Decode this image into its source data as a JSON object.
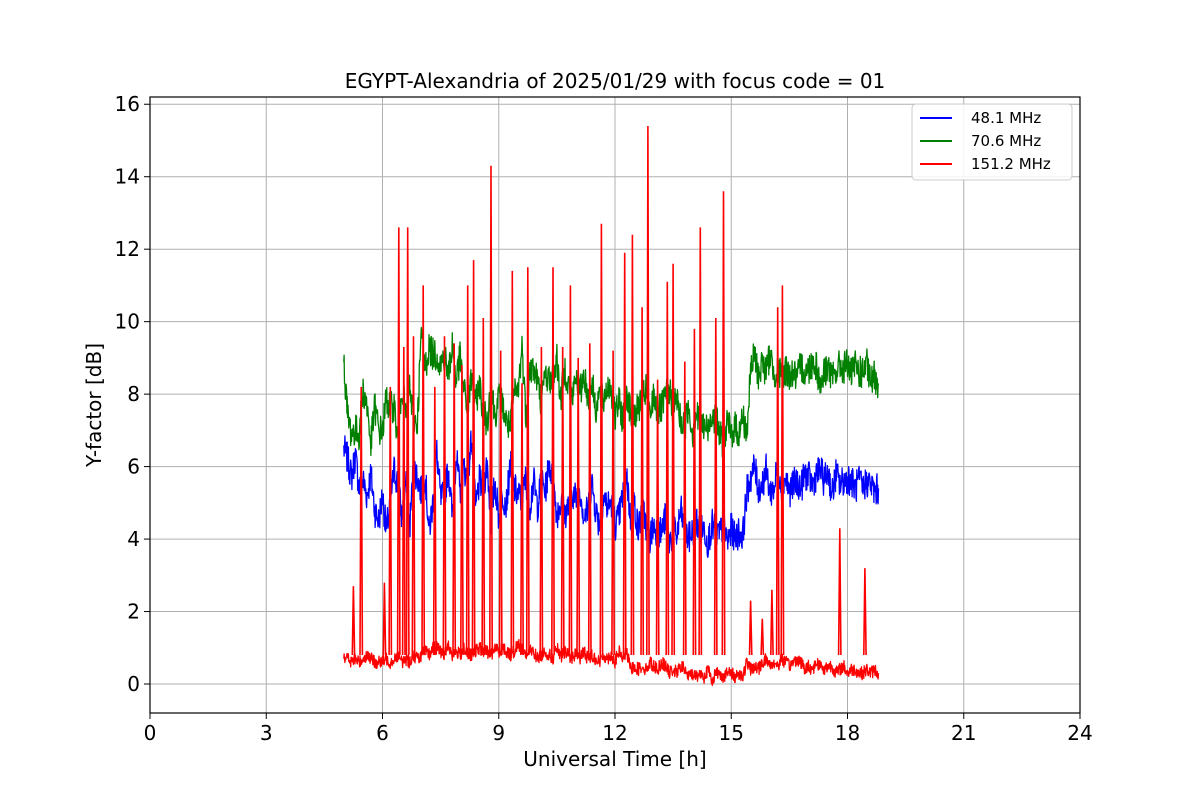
{
  "chart_data": {
    "type": "line",
    "title": "EGYPT-Alexandria of 2025/01/29 with focus code = 01",
    "xlabel": "Universal Time [h]",
    "ylabel": "Y-factor [dB]",
    "xlim": [
      0,
      24
    ],
    "ylim": [
      -0.8,
      16.2
    ],
    "xticks": [
      0,
      3,
      6,
      9,
      12,
      15,
      18,
      21,
      24
    ],
    "yticks": [
      0,
      2,
      4,
      6,
      8,
      10,
      12,
      14,
      16
    ],
    "grid": true,
    "legend_position": "top-right",
    "series": [
      {
        "name": "48.1 MHz",
        "color": "#0000ff",
        "x": [
          5.0,
          5.1,
          5.2,
          5.3,
          5.4,
          5.5,
          5.6,
          5.7,
          5.8,
          5.9,
          6.0,
          6.1,
          6.2,
          6.3,
          6.4,
          6.5,
          6.6,
          6.7,
          6.8,
          6.9,
          7.0,
          7.1,
          7.2,
          7.3,
          7.4,
          7.5,
          7.6,
          7.7,
          7.8,
          7.9,
          8.0,
          8.1,
          8.2,
          8.3,
          8.4,
          8.5,
          8.6,
          8.7,
          8.8,
          8.9,
          9.0,
          9.1,
          9.2,
          9.3,
          9.4,
          9.5,
          9.6,
          9.7,
          9.8,
          9.9,
          10.0,
          10.1,
          10.2,
          10.3,
          10.4,
          10.5,
          10.6,
          10.7,
          10.8,
          10.9,
          11.0,
          11.1,
          11.2,
          11.3,
          11.4,
          11.5,
          11.6,
          11.7,
          11.8,
          11.9,
          12.0,
          12.1,
          12.2,
          12.3,
          12.4,
          12.5,
          12.6,
          12.7,
          12.8,
          12.9,
          13.0,
          13.1,
          13.2,
          13.3,
          13.4,
          13.5,
          13.6,
          13.7,
          13.8,
          13.9,
          14.0,
          14.1,
          14.2,
          14.3,
          14.4,
          14.5,
          14.6,
          14.7,
          14.8,
          14.9,
          15.0,
          15.1,
          15.2,
          15.3,
          15.4,
          15.5,
          15.6,
          15.7,
          15.8,
          15.9,
          16.0,
          16.1,
          16.2,
          16.3,
          16.4,
          16.5,
          16.6,
          16.7,
          16.8,
          16.9,
          17.0,
          17.1,
          17.2,
          17.3,
          17.4,
          17.5,
          17.6,
          17.7,
          17.8,
          17.9,
          18.0,
          18.1,
          18.2,
          18.3,
          18.4,
          18.5,
          18.6,
          18.7,
          18.8
        ],
        "y": [
          6.5,
          6.2,
          5.7,
          6.3,
          5.4,
          5.6,
          5.2,
          5.8,
          4.8,
          4.5,
          5.2,
          4.2,
          5.0,
          5.9,
          5.5,
          4.6,
          5.6,
          4.3,
          6.0,
          5.7,
          5.3,
          5.8,
          4.2,
          5.0,
          6.4,
          5.1,
          5.2,
          6.0,
          4.6,
          6.3,
          5.3,
          6.0,
          5.6,
          6.9,
          4.8,
          5.6,
          5.4,
          6.1,
          4.5,
          5.6,
          4.6,
          5.2,
          5.0,
          6.1,
          5.4,
          5.2,
          5.1,
          5.7,
          4.9,
          5.6,
          4.9,
          5.6,
          5.3,
          6.1,
          5.6,
          4.7,
          5.0,
          4.7,
          4.9,
          5.3,
          5.1,
          5.4,
          4.6,
          4.8,
          5.6,
          4.8,
          4.4,
          5.2,
          4.9,
          5.0,
          4.4,
          4.6,
          5.2,
          5.8,
          4.5,
          5.0,
          4.2,
          4.9,
          4.4,
          4.0,
          4.4,
          4.2,
          4.2,
          4.6,
          3.9,
          4.2,
          4.1,
          4.8,
          4.2,
          4.0,
          4.2,
          4.5,
          4.2,
          4.3,
          3.9,
          4.4,
          4.2,
          4.1,
          4.4,
          3.9,
          4.3,
          4.0,
          4.2,
          4.1,
          5.3,
          5.7,
          6.0,
          5.4,
          5.5,
          5.9,
          5.3,
          5.4,
          6.0,
          5.5,
          5.7,
          5.3,
          5.5,
          5.6,
          5.4,
          5.8,
          5.7,
          5.5,
          5.8,
          5.9,
          5.6,
          5.9,
          5.2,
          5.8,
          5.5,
          5.6,
          5.7,
          5.6,
          5.4,
          5.6,
          5.4,
          5.6,
          5.5,
          5.3,
          5.4
        ]
      },
      {
        "name": "70.6 MHz",
        "color": "#008000",
        "x": [
          5.0,
          5.1,
          5.2,
          5.3,
          5.4,
          5.5,
          5.6,
          5.7,
          5.8,
          5.9,
          6.0,
          6.1,
          6.2,
          6.3,
          6.4,
          6.5,
          6.6,
          6.7,
          6.8,
          6.9,
          7.0,
          7.1,
          7.2,
          7.3,
          7.4,
          7.5,
          7.6,
          7.7,
          7.8,
          7.9,
          8.0,
          8.1,
          8.2,
          8.3,
          8.4,
          8.5,
          8.6,
          8.7,
          8.8,
          8.9,
          9.0,
          9.1,
          9.2,
          9.3,
          9.4,
          9.5,
          9.6,
          9.7,
          9.8,
          9.9,
          10.0,
          10.1,
          10.2,
          10.3,
          10.4,
          10.5,
          10.6,
          10.7,
          10.8,
          10.9,
          11.0,
          11.1,
          11.2,
          11.3,
          11.4,
          11.5,
          11.6,
          11.7,
          11.8,
          11.9,
          12.0,
          12.1,
          12.2,
          12.3,
          12.4,
          12.5,
          12.6,
          12.7,
          12.8,
          12.9,
          13.0,
          13.1,
          13.2,
          13.3,
          13.4,
          13.5,
          13.6,
          13.7,
          13.8,
          13.9,
          14.0,
          14.1,
          14.2,
          14.3,
          14.4,
          14.5,
          14.6,
          14.7,
          14.8,
          14.9,
          15.0,
          15.1,
          15.2,
          15.3,
          15.4,
          15.5,
          15.6,
          15.7,
          15.8,
          15.9,
          16.0,
          16.1,
          16.2,
          16.3,
          16.4,
          16.5,
          16.6,
          16.7,
          16.8,
          16.9,
          17.0,
          17.1,
          17.2,
          17.3,
          17.4,
          17.5,
          17.6,
          17.7,
          17.8,
          17.9,
          18.0,
          18.1,
          18.2,
          18.3,
          18.4,
          18.5,
          18.6,
          18.7,
          18.8
        ],
        "y": [
          8.9,
          7.4,
          6.9,
          7.0,
          6.9,
          8.1,
          7.7,
          6.6,
          7.7,
          7.0,
          7.0,
          7.9,
          7.6,
          7.7,
          6.6,
          8.3,
          7.4,
          8.2,
          7.3,
          7.2,
          9.7,
          8.7,
          9.3,
          9.1,
          9.1,
          8.8,
          9.1,
          8.5,
          9.4,
          8.4,
          9.0,
          8.1,
          7.6,
          8.5,
          7.7,
          8.3,
          7.5,
          7.2,
          8.3,
          7.4,
          7.9,
          7.7,
          7.2,
          7.1,
          8.0,
          8.1,
          9.3,
          7.4,
          8.7,
          8.7,
          8.4,
          7.7,
          8.6,
          8.4,
          8.4,
          9.0,
          7.8,
          8.7,
          8.3,
          7.9,
          8.5,
          8.0,
          8.6,
          7.9,
          8.4,
          7.6,
          8.0,
          7.8,
          8.2,
          8.2,
          7.3,
          7.8,
          7.3,
          8.1,
          7.5,
          7.4,
          7.6,
          7.9,
          8.1,
          7.3,
          8.0,
          7.5,
          7.6,
          7.9,
          8.1,
          7.6,
          7.9,
          7.2,
          7.1,
          7.7,
          6.9,
          7.5,
          7.1,
          7.1,
          7.0,
          7.5,
          7.3,
          6.9,
          6.6,
          7.2,
          6.9,
          7.1,
          6.9,
          7.4,
          6.9,
          8.6,
          9.1,
          8.5,
          8.9,
          8.6,
          9.1,
          8.6,
          8.6,
          8.5,
          8.7,
          8.5,
          8.6,
          8.4,
          8.8,
          8.6,
          8.7,
          8.9,
          8.8,
          8.2,
          8.6,
          8.8,
          8.4,
          8.6,
          8.8,
          8.7,
          8.9,
          8.5,
          8.8,
          8.6,
          8.6,
          8.8,
          8.3,
          8.5,
          8.3
        ]
      },
      {
        "name": "151.2 MHz",
        "color": "#ff0000",
        "x": [
          5.0,
          5.1,
          5.2,
          5.3,
          5.4,
          5.5,
          5.6,
          5.7,
          5.8,
          5.9,
          6.0,
          6.1,
          6.2,
          6.3,
          6.4,
          6.5,
          6.6,
          6.7,
          6.8,
          6.9,
          7.0,
          7.1,
          7.2,
          7.3,
          7.4,
          7.5,
          7.6,
          7.7,
          7.8,
          7.9,
          8.0,
          8.1,
          8.2,
          8.3,
          8.4,
          8.5,
          8.6,
          8.7,
          8.8,
          8.9,
          9.0,
          9.1,
          9.2,
          9.3,
          9.4,
          9.5,
          9.6,
          9.7,
          9.8,
          9.9,
          10.0,
          10.1,
          10.2,
          10.3,
          10.4,
          10.5,
          10.6,
          10.7,
          10.8,
          10.9,
          11.0,
          11.1,
          11.2,
          11.3,
          11.4,
          11.5,
          11.6,
          11.7,
          11.8,
          11.9,
          12.0,
          12.1,
          12.2,
          12.3,
          12.4,
          12.5,
          12.6,
          12.7,
          12.8,
          12.9,
          13.0,
          13.1,
          13.2,
          13.3,
          13.4,
          13.5,
          13.6,
          13.7,
          13.8,
          13.9,
          14.0,
          14.1,
          14.2,
          14.3,
          14.4,
          14.5,
          14.6,
          14.7,
          14.8,
          14.9,
          15.0,
          15.1,
          15.2,
          15.3,
          15.4,
          15.5,
          15.6,
          15.7,
          15.8,
          15.9,
          16.0,
          16.1,
          16.2,
          16.3,
          16.4,
          16.5,
          16.6,
          16.7,
          16.8,
          16.9,
          17.0,
          17.1,
          17.2,
          17.3,
          17.4,
          17.5,
          17.6,
          17.7,
          17.8,
          17.9,
          18.0,
          18.1,
          18.2,
          18.3,
          18.4,
          18.5,
          18.6,
          18.7,
          18.8
        ],
        "y": [
          0.8,
          0.7,
          0.6,
          0.7,
          0.6,
          0.7,
          0.8,
          0.7,
          0.6,
          0.6,
          0.6,
          0.7,
          0.6,
          0.7,
          0.8,
          0.6,
          0.7,
          0.6,
          0.8,
          0.7,
          0.8,
          0.9,
          0.8,
          1.0,
          1.0,
          0.9,
          0.8,
          1.1,
          0.8,
          0.9,
          0.8,
          1.0,
          0.8,
          0.8,
          0.9,
          1.0,
          0.9,
          0.9,
          0.8,
          1.0,
          0.9,
          1.0,
          0.9,
          0.8,
          0.9,
          1.1,
          1.0,
          0.8,
          0.9,
          0.9,
          0.7,
          0.8,
          0.9,
          0.8,
          0.7,
          1.0,
          0.7,
          0.9,
          0.8,
          0.7,
          0.9,
          0.7,
          0.9,
          0.7,
          0.8,
          0.7,
          0.6,
          0.8,
          0.7,
          0.8,
          0.6,
          0.9,
          0.7,
          0.9,
          0.4,
          0.5,
          0.4,
          0.5,
          0.4,
          0.6,
          0.5,
          0.4,
          0.6,
          0.5,
          0.3,
          0.4,
          0.3,
          0.5,
          0.4,
          0.2,
          0.3,
          0.2,
          0.3,
          0.2,
          0.4,
          0.1,
          0.3,
          0.3,
          0.2,
          0.3,
          0.3,
          0.2,
          0.3,
          0.2,
          0.6,
          0.4,
          0.5,
          0.4,
          0.6,
          0.7,
          0.5,
          0.6,
          0.5,
          0.7,
          0.6,
          0.5,
          0.6,
          0.7,
          0.6,
          0.4,
          0.5,
          0.4,
          0.6,
          0.5,
          0.4,
          0.5,
          0.5,
          0.3,
          0.4,
          0.5,
          0.3,
          0.4,
          0.4,
          0.3,
          0.3,
          0.4,
          0.3,
          0.4,
          0.3
        ],
        "spikes": [
          {
            "x": 5.25,
            "y": 2.7
          },
          {
            "x": 5.45,
            "y": 8.2
          },
          {
            "x": 6.05,
            "y": 2.8
          },
          {
            "x": 6.2,
            "y": 8.2
          },
          {
            "x": 6.42,
            "y": 12.6
          },
          {
            "x": 6.55,
            "y": 9.3
          },
          {
            "x": 6.65,
            "y": 12.6
          },
          {
            "x": 6.8,
            "y": 9.6
          },
          {
            "x": 7.05,
            "y": 11.0
          },
          {
            "x": 7.35,
            "y": 8.2
          },
          {
            "x": 7.6,
            "y": 9.6
          },
          {
            "x": 7.85,
            "y": 9.4
          },
          {
            "x": 8.05,
            "y": 8.8
          },
          {
            "x": 8.2,
            "y": 11.0
          },
          {
            "x": 8.35,
            "y": 11.7
          },
          {
            "x": 8.6,
            "y": 10.1
          },
          {
            "x": 8.8,
            "y": 14.3
          },
          {
            "x": 9.05,
            "y": 9.2
          },
          {
            "x": 9.35,
            "y": 11.4
          },
          {
            "x": 9.6,
            "y": 8.3
          },
          {
            "x": 9.75,
            "y": 11.5
          },
          {
            "x": 10.1,
            "y": 9.3
          },
          {
            "x": 10.4,
            "y": 11.5
          },
          {
            "x": 10.65,
            "y": 9.3
          },
          {
            "x": 10.85,
            "y": 11.0
          },
          {
            "x": 11.05,
            "y": 9.0
          },
          {
            "x": 11.35,
            "y": 9.4
          },
          {
            "x": 11.65,
            "y": 12.7
          },
          {
            "x": 11.95,
            "y": 9.2
          },
          {
            "x": 12.25,
            "y": 11.9
          },
          {
            "x": 12.45,
            "y": 12.4
          },
          {
            "x": 12.7,
            "y": 10.4
          },
          {
            "x": 12.85,
            "y": 15.4
          },
          {
            "x": 13.1,
            "y": 8.4
          },
          {
            "x": 13.35,
            "y": 11.1
          },
          {
            "x": 13.5,
            "y": 11.6
          },
          {
            "x": 13.8,
            "y": 8.9
          },
          {
            "x": 14.05,
            "y": 9.8
          },
          {
            "x": 14.2,
            "y": 12.6
          },
          {
            "x": 14.6,
            "y": 10.1
          },
          {
            "x": 14.8,
            "y": 13.6
          },
          {
            "x": 15.5,
            "y": 2.3
          },
          {
            "x": 15.8,
            "y": 1.8
          },
          {
            "x": 16.05,
            "y": 2.6
          },
          {
            "x": 16.2,
            "y": 10.4
          },
          {
            "x": 16.32,
            "y": 11.0
          },
          {
            "x": 17.8,
            "y": 4.3
          },
          {
            "x": 18.45,
            "y": 3.2
          }
        ]
      }
    ]
  }
}
